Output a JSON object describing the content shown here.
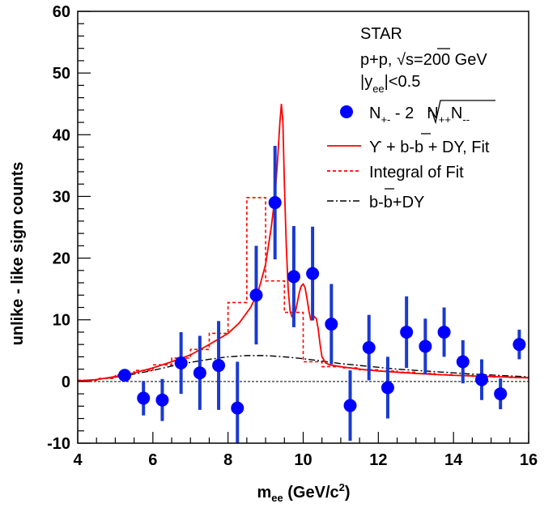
{
  "chart_data": {
    "type": "scatter",
    "xlabel": "m",
    "xlabel_sub": "ee",
    "xlabel_units": " (GeV/c",
    "xlabel_units_sup": "2",
    "xlabel_units_end": ")",
    "ylabel": "unlike - like sign counts",
    "xlim": [
      4,
      16
    ],
    "ylim": [
      -10,
      60
    ],
    "x_ticks": [
      "4",
      "6",
      "8",
      "10",
      "12",
      "14",
      "16"
    ],
    "y_ticks": [
      "-10",
      "0",
      "10",
      "20",
      "30",
      "40",
      "50",
      "60"
    ],
    "grid": false,
    "colors": {
      "data": "#0000ff",
      "errorbar": "#1a3acf",
      "fit": "#ff0000",
      "background": "#000000"
    },
    "annotations": {
      "experiment": "STAR",
      "system_prefix": "p+p, ",
      "sqrt": "√",
      "system_s": "s",
      "system_energy": "=200 GeV",
      "rapidity_pre": "|y",
      "rapidity_sub": "ee",
      "rapidity_post": "|<0.5"
    },
    "legend": {
      "placement": "top-right",
      "data_label": {
        "n1": "N",
        "n1_sub": "+-",
        "minus": " - 2",
        "n2": "N",
        "n2_sub": "++",
        "n3": "N",
        "n3_sub": "--"
      },
      "fit_label": {
        "upsilon": "ϒ",
        "plus1": " + b-",
        "bbar": "b",
        "rest": " + DY, Fit"
      },
      "integral_label": "Integral of Fit",
      "bg_label": {
        "pre": "b-",
        "bbar": "b",
        "post": "+DY"
      }
    },
    "points": [
      {
        "x": 5.25,
        "y": 1.0,
        "err": 0.6
      },
      {
        "x": 5.75,
        "y": -2.7,
        "err": 2.8
      },
      {
        "x": 6.25,
        "y": -3.0,
        "err": 3.4
      },
      {
        "x": 6.75,
        "y": 3.0,
        "err": 5.0
      },
      {
        "x": 7.25,
        "y": 1.4,
        "err": 6.0
      },
      {
        "x": 7.75,
        "y": 2.6,
        "err": 7.2
      },
      {
        "x": 8.25,
        "y": -4.3,
        "err": 7.5
      },
      {
        "x": 8.75,
        "y": 14.0,
        "err": 8.0
      },
      {
        "x": 9.25,
        "y": 29.0,
        "err": 9.2
      },
      {
        "x": 9.75,
        "y": 17.0,
        "err": 8.2
      },
      {
        "x": 10.25,
        "y": 17.5,
        "err": 7.6
      },
      {
        "x": 10.75,
        "y": 9.3,
        "err": 6.5
      },
      {
        "x": 11.25,
        "y": -3.9,
        "err": 5.7
      },
      {
        "x": 11.75,
        "y": 5.5,
        "err": 5.3
      },
      {
        "x": 12.25,
        "y": -1.0,
        "err": 5.0
      },
      {
        "x": 12.75,
        "y": 8.0,
        "err": 5.8
      },
      {
        "x": 13.25,
        "y": 5.7,
        "err": 4.5
      },
      {
        "x": 13.75,
        "y": 8.0,
        "err": 4.0
      },
      {
        "x": 14.25,
        "y": 3.2,
        "err": 3.5
      },
      {
        "x": 14.75,
        "y": 0.3,
        "err": 3.3
      },
      {
        "x": 15.25,
        "y": -2.0,
        "err": 2.5
      },
      {
        "x": 15.75,
        "y": 6.0,
        "err": 2.4
      }
    ],
    "fit_curve": {
      "x": [
        4.0,
        4.5,
        5.0,
        5.5,
        6.0,
        6.5,
        7.0,
        7.5,
        8.0,
        8.3,
        8.6,
        8.8,
        9.0,
        9.15,
        9.25,
        9.32,
        9.38,
        9.42,
        9.46,
        9.5,
        9.55,
        9.6,
        9.65,
        9.7,
        9.75,
        9.8,
        9.85,
        9.9,
        9.95,
        10.0,
        10.05,
        10.1,
        10.15,
        10.2,
        10.25,
        10.3,
        10.35,
        10.4,
        10.45,
        10.5,
        10.6,
        10.7,
        10.8,
        11.0,
        11.5,
        12.0,
        12.5,
        13.0,
        13.5,
        14.0,
        14.5,
        15.0,
        15.5,
        16.0
      ],
      "y": [
        0.1,
        0.3,
        0.8,
        1.4,
        2.2,
        3.2,
        4.3,
        6.0,
        7.8,
        9.5,
        12.0,
        14.5,
        19.0,
        25.0,
        30.0,
        36.0,
        42.0,
        45.0,
        42.0,
        32.0,
        22.0,
        15.0,
        11.5,
        10.5,
        10.5,
        11.5,
        13.0,
        14.5,
        15.5,
        15.8,
        15.2,
        13.5,
        11.5,
        10.0,
        10.0,
        10.5,
        10.2,
        8.5,
        6.0,
        4.0,
        3.0,
        2.7,
        2.6,
        2.4,
        2.0,
        1.7,
        1.5,
        1.3,
        1.15,
        1.0,
        0.9,
        0.8,
        0.7,
        0.6
      ]
    },
    "integral_histogram": {
      "edges": [
        4.0,
        4.5,
        5.0,
        5.5,
        6.0,
        6.5,
        7.0,
        7.5,
        8.0,
        8.5,
        9.0,
        9.5,
        10.0,
        10.5,
        11.0,
        11.5,
        12.0,
        12.5,
        13.0,
        13.5,
        14.0,
        14.5,
        15.0,
        15.5,
        16.0
      ],
      "values": [
        0.2,
        0.5,
        1.1,
        1.8,
        2.7,
        3.8,
        5.2,
        7.8,
        12.8,
        29.8,
        16.3,
        11.2,
        3.2,
        2.4,
        2.2,
        1.9,
        1.7,
        1.5,
        1.3,
        1.1,
        1.0,
        0.85,
        0.75,
        0.65
      ]
    },
    "background_curve": {
      "x": [
        4.0,
        4.5,
        5.0,
        5.5,
        6.0,
        6.5,
        7.0,
        7.5,
        8.0,
        8.5,
        9.0,
        9.5,
        10.0,
        10.5,
        11.0,
        11.5,
        12.0,
        12.5,
        13.0,
        13.5,
        14.0,
        14.5,
        15.0,
        15.5,
        16.0
      ],
      "y": [
        0.1,
        0.3,
        0.7,
        1.2,
        1.8,
        2.5,
        3.1,
        3.6,
        4.0,
        4.2,
        4.2,
        4.0,
        3.7,
        3.3,
        2.9,
        2.6,
        2.3,
        2.0,
        1.8,
        1.6,
        1.4,
        1.2,
        1.05,
        0.9,
        0.75
      ]
    }
  }
}
